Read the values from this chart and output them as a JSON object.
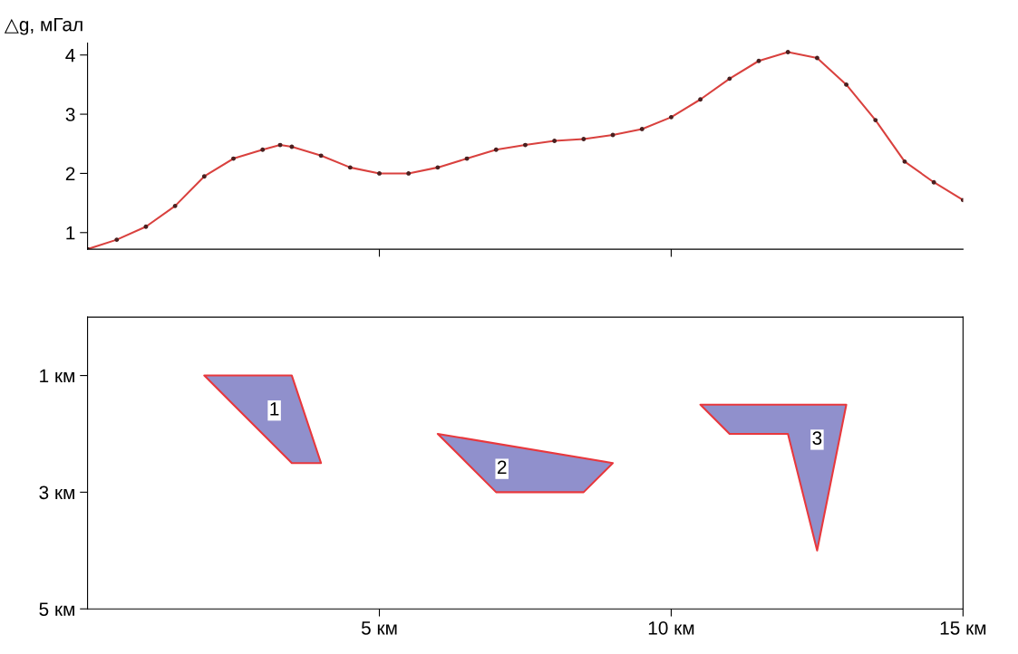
{
  "chart_data": [
    {
      "type": "line",
      "ylabel": "△g, мГал",
      "xlim": [
        0,
        15
      ],
      "ylim": [
        0.72,
        4.2
      ],
      "xticks": [
        {
          "value": 5,
          "label": null
        },
        {
          "value": 10,
          "label": null
        }
      ],
      "yticks": [
        1,
        2,
        3,
        4
      ],
      "tick_labels": "y",
      "marker": "circle",
      "line_style": "solid",
      "x": [
        0,
        0.5,
        1,
        1.5,
        2,
        2.5,
        3,
        3.3,
        3.5,
        4,
        4.5,
        5,
        5.5,
        6,
        6.5,
        7,
        7.5,
        8,
        8.5,
        9,
        9.5,
        10,
        10.5,
        11,
        11.5,
        12,
        12.5,
        13,
        13.5,
        14,
        14.5,
        15
      ],
      "series": [
        {
          "color": "#d9413e",
          "values": [
            0.72,
            0.88,
            1.1,
            1.45,
            1.95,
            2.25,
            2.4,
            2.48,
            2.45,
            2.3,
            2.1,
            2.0,
            2.0,
            2.1,
            2.25,
            2.4,
            2.48,
            2.55,
            2.58,
            2.65,
            2.75,
            2.95,
            3.25,
            3.6,
            3.9,
            4.05,
            3.95,
            3.5,
            2.9,
            2.2,
            1.85,
            1.55
          ]
        }
      ]
    },
    {
      "type": "area",
      "xlim": [
        0,
        15
      ],
      "ylim": [
        5,
        0
      ],
      "xticks": [
        {
          "value": 5,
          "label": "5 км"
        },
        {
          "value": 10,
          "label": "10 км"
        },
        {
          "value": 15,
          "label": "15 км"
        }
      ],
      "yticks": [
        {
          "value": 1,
          "label": "1 км"
        },
        {
          "value": 3,
          "label": "3 км"
        },
        {
          "value": 5,
          "label": "5 км"
        }
      ],
      "series": [
        {
          "color": "#9090cc",
          "x": [
            2,
            3.5,
            4,
            3.5
          ],
          "values": [
            1,
            1,
            2.5,
            2.5
          ]
        },
        {
          "color": "#9090cc",
          "x": [
            6,
            9,
            8.5,
            7
          ],
          "values": [
            2,
            2.5,
            3,
            3
          ]
        },
        {
          "color": "#9090cc",
          "x": [
            10.5,
            13,
            12.5,
            12,
            11
          ],
          "values": [
            1.5,
            1.5,
            4,
            2,
            2
          ]
        }
      ],
      "annotations": [
        {
          "text": "1",
          "x": 3.2,
          "y": 1.6
        },
        {
          "text": "2",
          "x": 7.1,
          "y": 2.6
        },
        {
          "text": "3",
          "x": 12.5,
          "y": 2.1
        }
      ]
    }
  ]
}
